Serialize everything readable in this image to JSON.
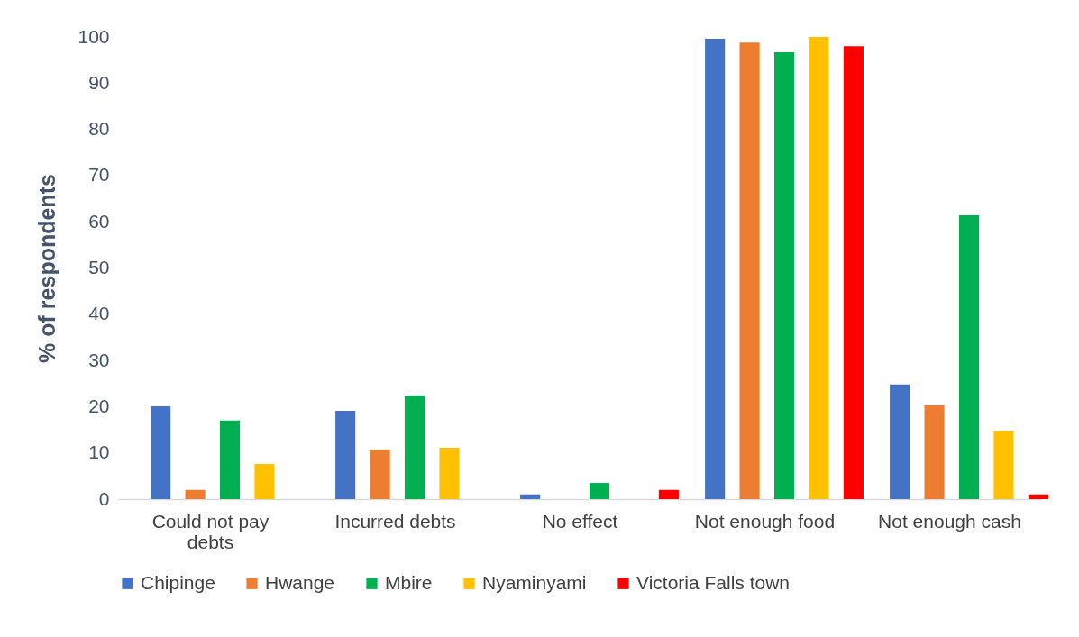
{
  "chart_data": {
    "type": "bar",
    "ylabel": "% of respondents",
    "categories": [
      "Could not pay debts",
      "Incurred debts",
      "No effect",
      "Not enough food",
      "Not enough cash"
    ],
    "series": [
      {
        "name": "Chipinge",
        "color": "#4472c4",
        "values": [
          20.1,
          19.1,
          1,
          99.6,
          24.8
        ]
      },
      {
        "name": "Hwange",
        "color": "#ed7d31",
        "values": [
          2,
          10.7,
          0,
          98.8,
          20.3
        ]
      },
      {
        "name": "Mbire",
        "color": "#00b050",
        "values": [
          17,
          22.4,
          3.5,
          96.7,
          61.4
        ]
      },
      {
        "name": "Nyaminyami",
        "color": "#ffc000",
        "values": [
          7.6,
          11.1,
          0,
          100,
          14.8
        ]
      },
      {
        "name": "Victoria Falls town",
        "color": "#ff0000",
        "values": [
          0,
          0,
          2,
          98,
          1
        ]
      }
    ],
    "ylim": [
      0,
      100
    ],
    "yticks": [
      0,
      10,
      20,
      30,
      40,
      50,
      60,
      70,
      80,
      90,
      100
    ],
    "grid": false,
    "legend": "bottom"
  }
}
